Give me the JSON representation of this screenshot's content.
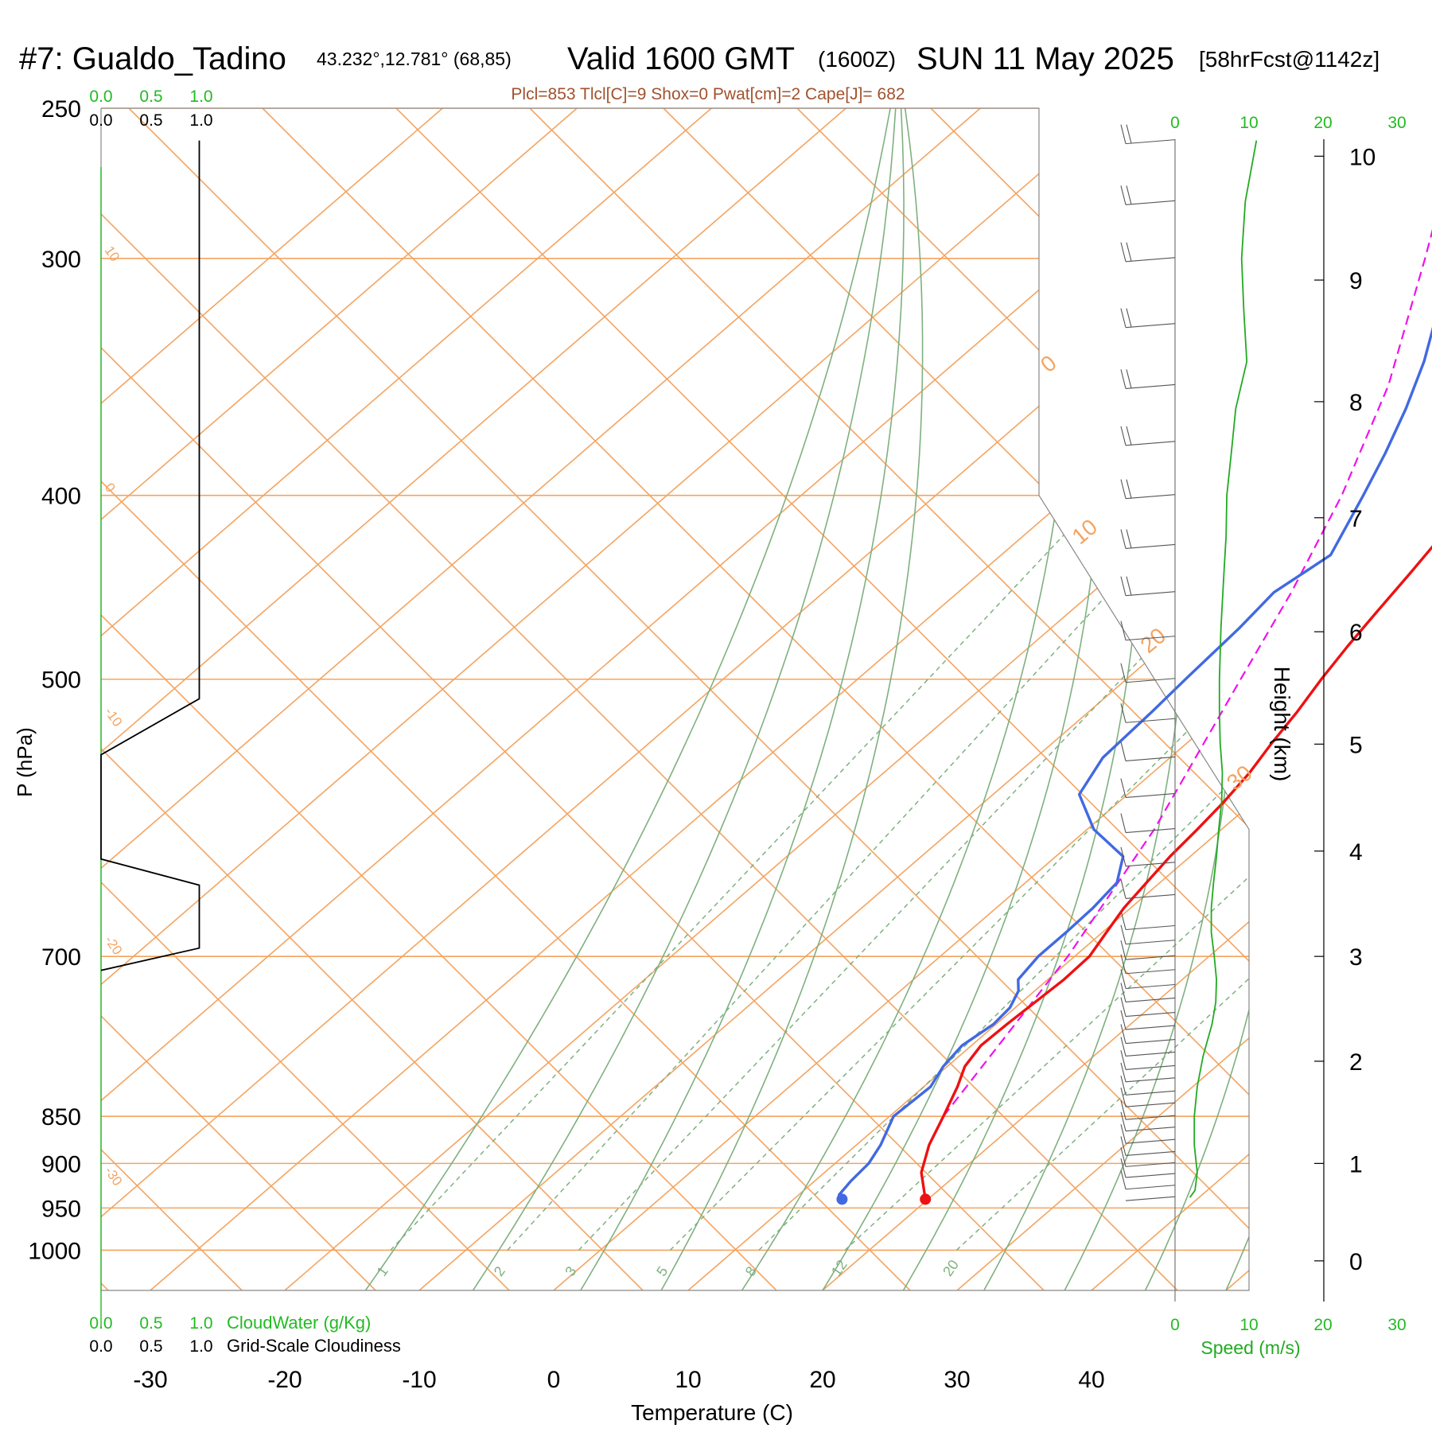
{
  "header": {
    "station": "#7: Gualdo_Tadino",
    "coords": "43.232°,12.781° (68,85)",
    "valid": "Valid 1600 GMT",
    "zulu": "(1600Z)",
    "date": "SUN 11 May 2025",
    "forecast": "[58hrFcst@1142z]",
    "indices": "Plcl=853 Tlcl[C]=9 Shox=0 Pwat[cm]=2 Cape[J]= 682"
  },
  "colors": {
    "temperature": "#ee1111",
    "dewpoint": "#4169e1",
    "parcel": "#ee11ee",
    "isotherm": "#f4a460",
    "adiabat": "#7fb07f",
    "mixing": "#7fb07f",
    "green_label": "#22bb22",
    "wind_speed": "#22aa22",
    "indices_text": "#a0522d",
    "barb": "#555555"
  },
  "chart_data": {
    "type": "line",
    "subtype": "skew-T log-p sounding",
    "xlabel": "Temperature (C)",
    "ylabel": "P (hPa)",
    "y2label": "Height (km)",
    "x_ticks": [
      -30,
      -20,
      -10,
      0,
      10,
      20,
      30,
      40
    ],
    "p_ticks": [
      250,
      300,
      400,
      500,
      700,
      850,
      900,
      950,
      1000
    ],
    "height_ticks": [
      0,
      1,
      2,
      3,
      4,
      5,
      6,
      7,
      8,
      9,
      10
    ],
    "height_km_at_p": [
      [
        1013,
        0
      ],
      [
        900,
        1
      ],
      [
        795,
        2
      ],
      [
        700,
        3
      ],
      [
        616,
        4
      ],
      [
        541,
        5
      ],
      [
        472,
        6
      ],
      [
        411,
        7
      ],
      [
        357,
        8
      ],
      [
        308,
        9
      ],
      [
        265,
        10
      ]
    ],
    "mixing_ratio_labels": [
      "1",
      "2",
      "3",
      "5",
      "8",
      "12",
      "20"
    ],
    "isotherm_labels_left": [
      {
        "text": "10",
        "p": 297
      },
      {
        "text": "0",
        "p": 396
      },
      {
        "text": "-10",
        "p": 520
      },
      {
        "text": "-20",
        "p": 686
      },
      {
        "text": "-30",
        "p": 908
      }
    ],
    "isotherm_labels_right": [
      {
        "text": "0",
        "p": 345
      },
      {
        "text": "10",
        "p": 425
      },
      {
        "text": "20",
        "p": 485
      },
      {
        "text": "30",
        "p": 573
      }
    ],
    "temperature_profile": [
      [
        940,
        19.8
      ],
      [
        910,
        17.2
      ],
      [
        880,
        15.4
      ],
      [
        850,
        14.0
      ],
      [
        820,
        12.5
      ],
      [
        800,
        11.3
      ],
      [
        780,
        10.7
      ],
      [
        760,
        10.8
      ],
      [
        740,
        11.0
      ],
      [
        720,
        11.2
      ],
      [
        700,
        11.1
      ],
      [
        680,
        10.3
      ],
      [
        660,
        9.5
      ],
      [
        640,
        9.0
      ],
      [
        620,
        8.5
      ],
      [
        600,
        8.2
      ],
      [
        580,
        7.8
      ],
      [
        560,
        7.2
      ],
      [
        540,
        6.3
      ],
      [
        520,
        5.5
      ],
      [
        500,
        4.5
      ],
      [
        480,
        3.6
      ],
      [
        460,
        2.8
      ],
      [
        440,
        2.0
      ],
      [
        420,
        1.1
      ],
      [
        400,
        0.0
      ],
      [
        380,
        -1.0
      ],
      [
        360,
        -2.5
      ],
      [
        340,
        -4.5
      ],
      [
        320,
        -6.8
      ],
      [
        300,
        -9.0
      ],
      [
        280,
        -11.4
      ],
      [
        270,
        -12.7
      ],
      [
        260,
        -14.2
      ]
    ],
    "dewpoint_profile": [
      [
        940,
        13.6
      ],
      [
        935,
        13.0
      ],
      [
        920,
        12.7
      ],
      [
        900,
        12.5
      ],
      [
        880,
        11.8
      ],
      [
        860,
        10.8
      ],
      [
        850,
        10.3
      ],
      [
        835,
        10.4
      ],
      [
        820,
        10.5
      ],
      [
        800,
        9.7
      ],
      [
        780,
        9.3
      ],
      [
        760,
        9.8
      ],
      [
        745,
        9.6
      ],
      [
        730,
        8.8
      ],
      [
        720,
        7.8
      ],
      [
        700,
        7.3
      ],
      [
        680,
        7.3
      ],
      [
        660,
        7.2
      ],
      [
        640,
        6.8
      ],
      [
        620,
        5.0
      ],
      [
        600,
        0.5
      ],
      [
        575,
        -3.6
      ],
      [
        550,
        -5.0
      ],
      [
        520,
        -5.3
      ],
      [
        500,
        -5.6
      ],
      [
        470,
        -6.0
      ],
      [
        450,
        -6.5
      ],
      [
        430,
        -5.5
      ],
      [
        400,
        -8.2
      ],
      [
        380,
        -10.2
      ],
      [
        360,
        -12.5
      ],
      [
        340,
        -15.2
      ],
      [
        320,
        -18.5
      ],
      [
        300,
        -22.5
      ],
      [
        280,
        -26.5
      ],
      [
        260,
        -30.5
      ]
    ],
    "parcel_path": [
      [
        850,
        14.0
      ],
      [
        700,
        9.5
      ],
      [
        600,
        5.0
      ],
      [
        500,
        -1.5
      ],
      [
        450,
        -5.2
      ],
      [
        400,
        -9.8
      ],
      [
        350,
        -15.8
      ],
      [
        300,
        -24.0
      ],
      [
        285,
        -26.8
      ]
    ],
    "cloud_water_scale": [
      "0.0",
      "0.5",
      "1.0"
    ],
    "cloudiness_scale": [
      "0.0",
      "0.5",
      "1.0"
    ],
    "cloudiness_profile": [
      [
        260,
        0.98
      ],
      [
        512,
        0.98
      ],
      [
        548,
        0
      ],
      [
        622,
        0
      ],
      [
        642,
        0.98
      ],
      [
        693,
        0.98
      ],
      [
        712,
        0
      ]
    ],
    "wind_speed_ticks": [
      "0",
      "10",
      "20",
      "30"
    ],
    "wind_speed_label": "Speed (m/s)",
    "wind_speed_profile": [
      [
        938,
        2.0
      ],
      [
        930,
        2.7
      ],
      [
        910,
        3.0
      ],
      [
        880,
        2.6
      ],
      [
        850,
        2.6
      ],
      [
        820,
        3.0
      ],
      [
        790,
        3.8
      ],
      [
        760,
        5.0
      ],
      [
        740,
        5.5
      ],
      [
        720,
        5.6
      ],
      [
        700,
        5.3
      ],
      [
        680,
        4.9
      ],
      [
        660,
        4.9
      ],
      [
        640,
        5.2
      ],
      [
        620,
        5.6
      ],
      [
        600,
        5.9
      ],
      [
        580,
        6.3
      ],
      [
        560,
        6.4
      ],
      [
        540,
        6.1
      ],
      [
        520,
        6.0
      ],
      [
        500,
        6.0
      ],
      [
        470,
        6.2
      ],
      [
        440,
        6.6
      ],
      [
        420,
        6.9
      ],
      [
        400,
        7.0
      ],
      [
        380,
        7.6
      ],
      [
        360,
        8.2
      ],
      [
        340,
        9.7
      ],
      [
        320,
        9.3
      ],
      [
        300,
        9.0
      ],
      [
        280,
        9.5
      ],
      [
        260,
        11.0
      ]
    ],
    "wind_barbs": [
      {
        "p": 938,
        "speed": 2
      },
      {
        "p": 925,
        "speed": 3
      },
      {
        "p": 912,
        "speed": 3
      },
      {
        "p": 900,
        "speed": 3
      },
      {
        "p": 888,
        "speed": 3
      },
      {
        "p": 875,
        "speed": 3
      },
      {
        "p": 862,
        "speed": 3
      },
      {
        "p": 850,
        "speed": 3
      },
      {
        "p": 837,
        "speed": 3
      },
      {
        "p": 825,
        "speed": 3
      },
      {
        "p": 812,
        "speed": 3
      },
      {
        "p": 800,
        "speed": 4
      },
      {
        "p": 787,
        "speed": 4
      },
      {
        "p": 775,
        "speed": 5
      },
      {
        "p": 762,
        "speed": 5
      },
      {
        "p": 750,
        "speed": 5
      },
      {
        "p": 737,
        "speed": 5
      },
      {
        "p": 725,
        "speed": 6
      },
      {
        "p": 712,
        "speed": 6
      },
      {
        "p": 700,
        "speed": 5
      },
      {
        "p": 687,
        "speed": 5
      },
      {
        "p": 675,
        "speed": 5
      },
      {
        "p": 650,
        "speed": 5
      },
      {
        "p": 625,
        "speed": 5
      },
      {
        "p": 600,
        "speed": 6
      },
      {
        "p": 575,
        "speed": 6
      },
      {
        "p": 550,
        "speed": 6
      },
      {
        "p": 525,
        "speed": 6
      },
      {
        "p": 500,
        "speed": 6
      },
      {
        "p": 475,
        "speed": 6
      },
      {
        "p": 450,
        "speed": 7
      },
      {
        "p": 425,
        "speed": 7
      },
      {
        "p": 400,
        "speed": 7
      },
      {
        "p": 375,
        "speed": 8
      },
      {
        "p": 350,
        "speed": 9
      },
      {
        "p": 325,
        "speed": 9
      },
      {
        "p": 300,
        "speed": 9
      },
      {
        "p": 280,
        "speed": 10
      },
      {
        "p": 260,
        "speed": 11
      }
    ]
  },
  "legend": {
    "cloud_water_label": "CloudWater (g/Kg)",
    "cloudiness_label": "Grid-Scale Cloudiness"
  }
}
